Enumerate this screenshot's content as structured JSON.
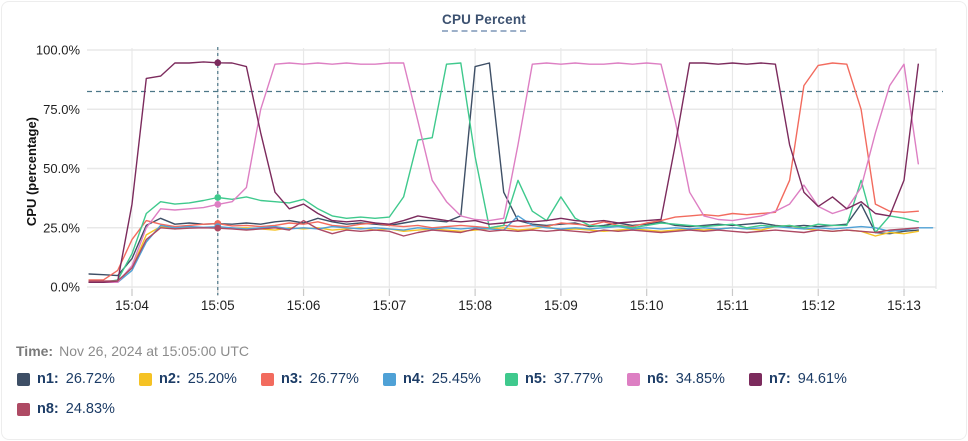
{
  "header": {
    "title": "CPU Percent"
  },
  "time_label": {
    "prefix": "Time:",
    "value": "Nov 26, 2024 at 15:05:00 UTC"
  },
  "colors": {
    "grid": "#e8e8e8",
    "tick": "#c9c9c9",
    "axis_text": "#1f1f1f",
    "threshold": "#4d7788",
    "crosshair": "#4d7788",
    "legend_text": "#1c3c66",
    "title_text": "#3c5170"
  },
  "chart_data": {
    "type": "line",
    "title": "CPU Percent",
    "xlabel": "",
    "ylabel": "CPU (percentage)",
    "ylim": [
      0,
      100
    ],
    "grid": true,
    "legend_position": "bottom",
    "y_tick_values": [
      100,
      75,
      50,
      25,
      0
    ],
    "y_tick_labels": [
      "100.0%",
      "75.0%",
      "50.0%",
      "25.0%",
      "0.0%"
    ],
    "x_tick_labels": [
      "15:04",
      "15:05",
      "15:06",
      "15:07",
      "15:08",
      "15:09",
      "15:10",
      "15:11",
      "15:12",
      "15:13"
    ],
    "x_start": "15:03:30",
    "x_interval_seconds": 10,
    "threshold_percent": 82.5,
    "crosshair": {
      "time": "15:05:00",
      "index": 9
    },
    "series": [
      {
        "name": "n1",
        "value_label": "26.72%",
        "color": "#3e4f66",
        "values": [
          5.5,
          5.2,
          4.8,
          12,
          26,
          29,
          26.5,
          27,
          26.5,
          26.72,
          26.5,
          27,
          26.5,
          27.5,
          28,
          27,
          29,
          27.5,
          26.5,
          27,
          26.5,
          26,
          27,
          28,
          28,
          27.5,
          30,
          93,
          94.5,
          40,
          28,
          26.5,
          26,
          26.5,
          27,
          25.5,
          26,
          27,
          26,
          26.5,
          27.5,
          26,
          25.5,
          26,
          26.5,
          26,
          26.5,
          27,
          26,
          25.5,
          26,
          25.5,
          26,
          26.5,
          35,
          23,
          22.5,
          23.5,
          24
        ]
      },
      {
        "name": "n2",
        "value_label": "25.20%",
        "color": "#f5c224",
        "values": [
          2.2,
          2.2,
          2.5,
          8,
          22,
          25.5,
          24.5,
          25,
          25,
          25.2,
          24.8,
          25,
          24.5,
          24,
          25,
          24.5,
          25,
          24,
          24.5,
          25,
          24,
          24.5,
          23.5,
          24,
          24.5,
          24,
          23.5,
          24,
          24.5,
          25,
          24,
          24.5,
          25.5,
          24,
          24.5,
          24,
          23.5,
          24,
          24.5,
          24,
          23.5,
          24,
          24.5,
          24,
          24.5,
          25,
          24.5,
          24,
          25.5,
          26,
          24.5,
          24,
          23.5,
          24,
          23.5,
          21.5,
          23,
          22.5,
          23.5
        ]
      },
      {
        "name": "n3",
        "value_label": "26.77%",
        "color": "#f26b5e",
        "values": [
          3,
          3,
          7,
          20,
          28,
          26.5,
          25.5,
          26,
          26.5,
          26.77,
          25.8,
          26,
          25.5,
          26,
          27,
          26.5,
          27.5,
          26,
          25.5,
          26.5,
          27,
          26,
          25.5,
          26,
          25,
          25.5,
          26,
          25.5,
          25,
          26,
          25.5,
          26,
          25.5,
          27,
          26.5,
          26,
          27.5,
          26,
          25.5,
          27,
          28,
          29.5,
          30,
          30.5,
          30,
          31,
          30.5,
          31,
          31.5,
          45,
          85,
          93.5,
          94.5,
          94,
          75,
          35,
          32,
          31.5,
          32
        ]
      },
      {
        "name": "n4",
        "value_label": "25.45%",
        "color": "#4fa1d6",
        "values": [
          2,
          2,
          2,
          7,
          19,
          26,
          25,
          25.5,
          25.2,
          25.45,
          25,
          24.5,
          25,
          25.5,
          24.5,
          25,
          24.5,
          25.5,
          25,
          24.5,
          25,
          24.5,
          24,
          25,
          24.5,
          25,
          24.5,
          25,
          24.5,
          24,
          30,
          26,
          25,
          24.5,
          25,
          24.5,
          25,
          25.5,
          24.5,
          25,
          24.5,
          25,
          24.5,
          25,
          24.5,
          25,
          24.5,
          25,
          25.5,
          25,
          24.5,
          25,
          24.5,
          25,
          25.5,
          25,
          23.5,
          24,
          25,
          25
        ]
      },
      {
        "name": "n5",
        "value_label": "37.77%",
        "color": "#3fc98d",
        "values": [
          2,
          2,
          3,
          14,
          31,
          36,
          35,
          35.5,
          36.5,
          37.77,
          37,
          38,
          36.5,
          36,
          35.5,
          37,
          33,
          30,
          29,
          29.5,
          29,
          29.5,
          38,
          62,
          63,
          94,
          94.5,
          55,
          25,
          26,
          45,
          32,
          28,
          38,
          29,
          26,
          25.5,
          26,
          25,
          26,
          27,
          26.5,
          26,
          25.5,
          26,
          26.5,
          25,
          26,
          25.5,
          26,
          25,
          26.5,
          26,
          26,
          45,
          23,
          30,
          29,
          27.5
        ]
      },
      {
        "name": "n6",
        "value_label": "34.85%",
        "color": "#dd7fc3",
        "values": [
          2,
          2,
          2,
          9,
          25,
          33,
          32.5,
          33,
          33.5,
          34.85,
          36,
          42,
          75,
          94,
          94.5,
          94,
          94.5,
          94,
          94.5,
          94,
          94,
          94.5,
          94.5,
          70,
          45,
          36,
          30,
          28.5,
          28,
          29,
          60,
          94,
          94.5,
          94,
          94.5,
          94,
          94,
          94.5,
          94,
          94.5,
          94,
          70,
          40,
          30,
          28.5,
          28,
          29,
          30,
          32,
          35,
          43,
          34,
          31,
          33,
          42,
          65,
          85,
          94,
          52
        ]
      },
      {
        "name": "n7",
        "value_label": "94.61%",
        "color": "#7c2b5d",
        "values": [
          2,
          2,
          2.5,
          35,
          88,
          89,
          94.5,
          94.5,
          95,
          94.61,
          94.5,
          93,
          65,
          40,
          33,
          35,
          31,
          28,
          27.5,
          28,
          27,
          26.5,
          28,
          30,
          29,
          28,
          27.5,
          28,
          26.5,
          27,
          28,
          27.5,
          28,
          29,
          28,
          27.5,
          28,
          27,
          27.5,
          28,
          28.5,
          60,
          94.5,
          94.5,
          94,
          94.5,
          94,
          94.5,
          94,
          60,
          40,
          34,
          38,
          33,
          36,
          31,
          30,
          45,
          94
        ]
      },
      {
        "name": "n8",
        "value_label": "24.83%",
        "color": "#ae4a64",
        "values": [
          2.5,
          2.5,
          2.6,
          8,
          20,
          25,
          24.5,
          24.8,
          25,
          24.83,
          24.5,
          24,
          24.5,
          25,
          24,
          28,
          24.5,
          22.5,
          24,
          23.5,
          24,
          23.5,
          21.5,
          23,
          24,
          23.5,
          23,
          24.5,
          23.5,
          24,
          23.5,
          24,
          23.5,
          24,
          23.5,
          23,
          24,
          23.5,
          24,
          23.5,
          23,
          23.5,
          24,
          23.5,
          24,
          23.5,
          23,
          23.5,
          24,
          23.5,
          23,
          24,
          23.5,
          24,
          23.5,
          23,
          24,
          24.5,
          25
        ]
      }
    ]
  }
}
